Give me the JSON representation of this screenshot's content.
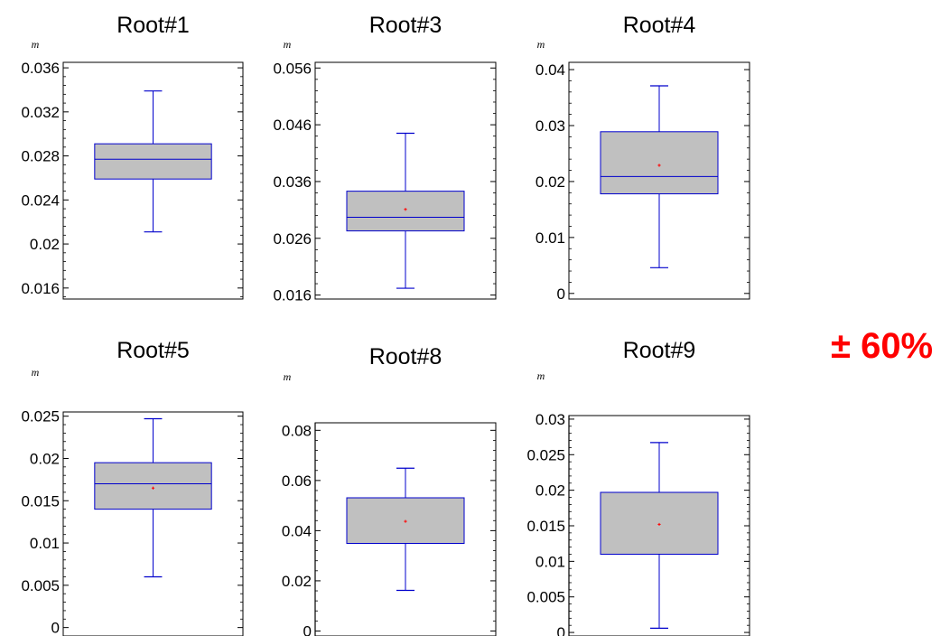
{
  "note": "± 60%",
  "colors": {
    "box_fill": "#c0c0c0",
    "box_stroke": "#0000cc",
    "mean_marker": "#ff0000",
    "annotation": "#ff0000"
  },
  "chart_data": [
    {
      "type": "box",
      "title": "Root#1",
      "ylabel": "m",
      "ylim": [
        0.015,
        0.0365
      ],
      "ticks": [
        0.016,
        0.02,
        0.024,
        0.028,
        0.032,
        0.036
      ],
      "tick_labels": [
        "0.016",
        "0.02",
        "0.024",
        "0.028",
        "0.032",
        "0.036"
      ],
      "box": {
        "whisker_low": 0.0211,
        "q1": 0.0259,
        "median": 0.0277,
        "q3": 0.0291,
        "whisker_high": 0.0339,
        "mean": null
      }
    },
    {
      "type": "box",
      "title": "Root#3",
      "ylabel": "m",
      "ylim": [
        0.0153,
        0.057
      ],
      "ticks": [
        0.016,
        0.026,
        0.036,
        0.046,
        0.056
      ],
      "tick_labels": [
        "0.016",
        "0.026",
        "0.036",
        "0.046",
        "0.056"
      ],
      "box": {
        "whisker_low": 0.0172,
        "q1": 0.0273,
        "median": 0.0297,
        "q3": 0.0343,
        "whisker_high": 0.0445,
        "mean": 0.0311
      }
    },
    {
      "type": "box",
      "title": "Root#4",
      "ylabel": "m",
      "ylim": [
        -0.001,
        0.0413
      ],
      "ticks": [
        0,
        0.01,
        0.02,
        0.03,
        0.04
      ],
      "tick_labels": [
        "0",
        "0.01",
        "0.02",
        "0.03",
        "0.04"
      ],
      "box": {
        "whisker_low": 0.0046,
        "q1": 0.0178,
        "median": 0.0209,
        "q3": 0.0289,
        "whisker_high": 0.0371,
        "mean": 0.0229
      }
    },
    {
      "type": "box",
      "title": "Root#5",
      "ylabel": "m",
      "ylim": [
        -0.001,
        0.0255
      ],
      "ticks": [
        0,
        0.005,
        0.01,
        0.015,
        0.02,
        0.025
      ],
      "tick_labels": [
        "0",
        "0.005",
        "0.01",
        "0.015",
        "0.02",
        "0.025"
      ],
      "box": {
        "whisker_low": 0.006,
        "q1": 0.014,
        "median": 0.017,
        "q3": 0.0195,
        "whisker_high": 0.0247,
        "mean": 0.0165
      }
    },
    {
      "type": "box",
      "title": "Root#8",
      "ylabel": "m",
      "ylim": [
        -0.002,
        0.083
      ],
      "ticks": [
        0,
        0.02,
        0.04,
        0.06,
        0.08
      ],
      "tick_labels": [
        "0",
        "0.02",
        "0.04",
        "0.06",
        "0.08"
      ],
      "box": {
        "whisker_low": 0.0162,
        "q1": 0.0349,
        "median": 0.0349,
        "q3": 0.0531,
        "whisker_high": 0.0649,
        "mean": 0.0437
      }
    },
    {
      "type": "box",
      "title": "Root#9",
      "ylabel": "m",
      "ylim": [
        -0.0005,
        0.0305
      ],
      "ticks": [
        0,
        0.005,
        0.01,
        0.015,
        0.02,
        0.025,
        0.03
      ],
      "tick_labels": [
        "0",
        "0.005",
        "0.01",
        "0.015",
        "0.02",
        "0.025",
        "0.03"
      ],
      "box": {
        "whisker_low": 0.0006,
        "q1": 0.011,
        "median": 0.0197,
        "q3": 0.0197,
        "whisker_high": 0.0267,
        "mean": 0.0152
      }
    }
  ]
}
